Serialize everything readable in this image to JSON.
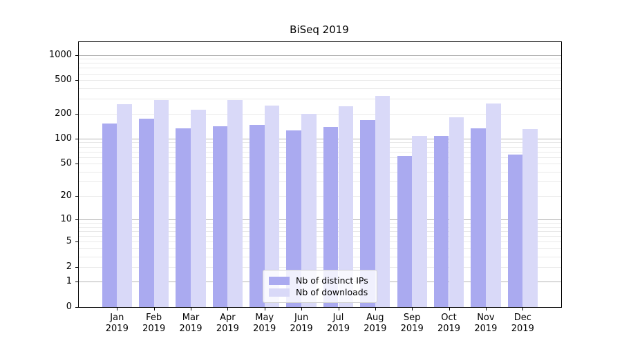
{
  "chart_data": {
    "type": "bar",
    "title": "BiSeq 2019",
    "xlabel": "",
    "ylabel": "",
    "categories": [
      "Jan",
      "Feb",
      "Mar",
      "Apr",
      "May",
      "Jun",
      "Jul",
      "Aug",
      "Sep",
      "Oct",
      "Nov",
      "Dec"
    ],
    "x_axis": {
      "year": "2019"
    },
    "series": [
      {
        "name": "Nb of distinct IPs",
        "color": "#aaaaf0",
        "values": [
          151,
          172,
          132,
          141,
          146,
          126,
          139,
          166,
          62,
          107,
          132,
          64
        ]
      },
      {
        "name": "Nb of downloads",
        "color": "#d9d9f8",
        "values": [
          257,
          291,
          221,
          288,
          250,
          198,
          242,
          322,
          107,
          179,
          262,
          130
        ]
      }
    ],
    "y_axis": {
      "scale": "log1p",
      "tick_values": [
        0,
        1,
        2,
        5,
        10,
        20,
        50,
        100,
        200,
        500,
        1000
      ],
      "tick_labels": [
        "0",
        "1",
        "2",
        "5",
        "10",
        "20",
        "50",
        "100",
        "200",
        "500",
        "1000"
      ],
      "ylim": [
        0,
        1421
      ],
      "grid": "on"
    },
    "legend_position": "lower center",
    "colors": {
      "major_grid": "#b2b2b2",
      "minor_grid": "#e9e9e9",
      "spine": "#000000",
      "text": "#000000",
      "background": "#ffffff"
    }
  }
}
